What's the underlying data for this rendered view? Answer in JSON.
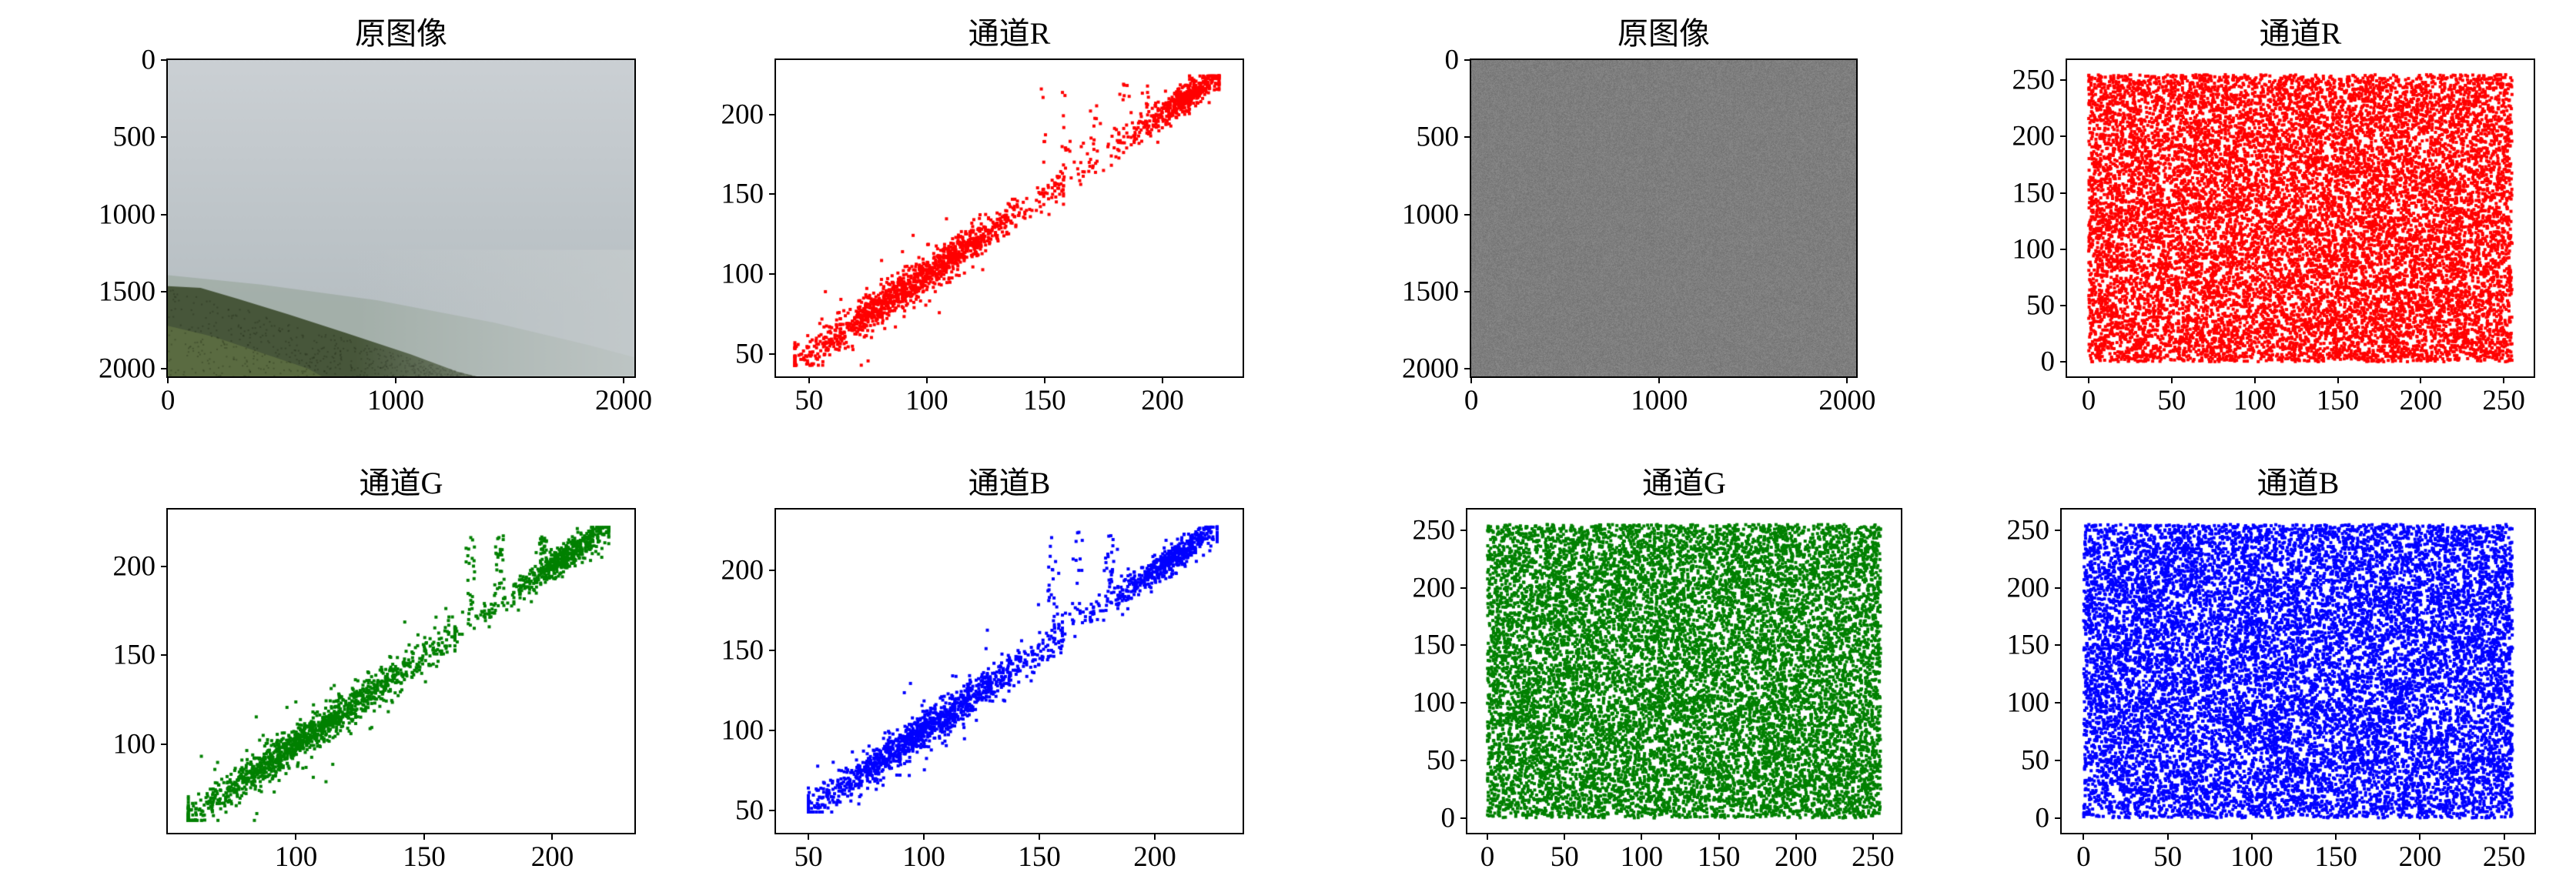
{
  "page": {
    "background": "#ffffff"
  },
  "chart_data": [
    {
      "type": "image",
      "title": "原图像",
      "image_kind": "landscape-photo",
      "description": "Hazy gray sky over dark green forested hillside; ridge descends from upper left toward lower right into mist",
      "x_ticks": [
        0,
        1000,
        2000
      ],
      "y_ticks": [
        0,
        500,
        1000,
        1500,
        2000
      ],
      "axis_extent": 2048,
      "seed": 7,
      "palette": {
        "sky_top": "#cbd0d4",
        "sky_bottom": "#b6bec2",
        "far_hill": "#93a395",
        "hill_dark": "#47563a",
        "foreground": "#5c6d41",
        "fog": "#c6cccd"
      }
    },
    {
      "type": "scatter",
      "title": "通道R",
      "color": "#ff0000",
      "marker_size": 4,
      "n_points": 1900,
      "seed": 101,
      "distribution": "adjacent-pixel-correlation",
      "xlim": [
        36,
        234
      ],
      "ylim": [
        36,
        234
      ],
      "x_ticks": [
        50,
        100,
        150,
        200
      ],
      "y_ticks": [
        50,
        100,
        150,
        200
      ],
      "diagonal": {
        "low": {
          "mean": 95,
          "sd": 28,
          "min": 44,
          "max": 158,
          "weight": 0.645
        },
        "high": {
          "mean": 209,
          "sd": 9,
          "min": 188,
          "max": 224,
          "weight": 0.25
        },
        "mid": {
          "min": 148,
          "max": 196,
          "weight": 0.05
        },
        "columns": [
          150,
          159,
          171,
          184,
          193
        ],
        "column_weight": 0.035,
        "y_top": 220,
        "noise_sd": 5.5,
        "data_min": 43,
        "data_max": 224
      }
    },
    {
      "type": "scatter",
      "title": "通道G",
      "color": "#008000",
      "marker_size": 4,
      "n_points": 2000,
      "seed": 102,
      "distribution": "adjacent-pixel-correlation",
      "xlim": [
        50,
        232
      ],
      "ylim": [
        50,
        232
      ],
      "x_ticks": [
        100,
        150,
        200
      ],
      "y_ticks": [
        100,
        150,
        200
      ],
      "diagonal": {
        "low": {
          "mean": 102,
          "sd": 27,
          "min": 58,
          "max": 162,
          "weight": 0.66
        },
        "high": {
          "mean": 206,
          "sd": 9,
          "min": 185,
          "max": 222,
          "weight": 0.24
        },
        "mid": {
          "min": 148,
          "max": 188,
          "weight": 0.05
        },
        "columns": [
          168,
          179,
          196
        ],
        "column_weight": 0.03,
        "y_top": 218,
        "noise_sd": 5,
        "data_min": 57,
        "data_max": 222
      }
    },
    {
      "type": "scatter",
      "title": "通道B",
      "color": "#0000ff",
      "marker_size": 4,
      "n_points": 1900,
      "seed": 103,
      "distribution": "adjacent-pixel-correlation",
      "xlim": [
        36,
        238
      ],
      "ylim": [
        36,
        238
      ],
      "x_ticks": [
        50,
        100,
        150,
        200
      ],
      "y_ticks": [
        50,
        100,
        150,
        200
      ],
      "diagonal": {
        "low": {
          "mean": 97,
          "sd": 28,
          "min": 50,
          "max": 160,
          "weight": 0.645
        },
        "high": {
          "mean": 207,
          "sd": 10,
          "min": 184,
          "max": 227,
          "weight": 0.25
        },
        "mid": {
          "min": 150,
          "max": 192,
          "weight": 0.05
        },
        "columns": [
          156,
          167,
          181
        ],
        "column_weight": 0.03,
        "y_top": 224,
        "noise_sd": 5.5,
        "data_min": 49,
        "data_max": 227
      }
    },
    {
      "type": "image",
      "title": "原图像",
      "image_kind": "gray-noise",
      "description": "Uniform mid-gray noise image (encrypted result)",
      "x_ticks": [
        0,
        1000,
        2000
      ],
      "y_ticks": [
        0,
        500,
        1000,
        1500,
        2000
      ],
      "axis_extent": 2048,
      "seed": 8,
      "noise": {
        "base": 126,
        "spread": 26
      }
    },
    {
      "type": "scatter",
      "title": "通道R",
      "color": "#ff0000",
      "marker_size": 4,
      "n_points": 14000,
      "seed": 201,
      "distribution": "uniform-random",
      "xlim": [
        -13,
        268
      ],
      "ylim": [
        -13,
        268
      ],
      "x_ticks": [
        0,
        50,
        100,
        150,
        200,
        250
      ],
      "y_ticks": [
        0,
        50,
        100,
        150,
        200,
        250
      ],
      "uniform": {
        "min": 0,
        "max": 255
      }
    },
    {
      "type": "scatter",
      "title": "通道G",
      "color": "#008000",
      "marker_size": 4,
      "n_points": 13000,
      "seed": 202,
      "distribution": "uniform-random",
      "xlim": [
        -13,
        268
      ],
      "ylim": [
        -13,
        268
      ],
      "x_ticks": [
        0,
        50,
        100,
        150,
        200,
        250
      ],
      "y_ticks": [
        0,
        50,
        100,
        150,
        200,
        250
      ],
      "uniform": {
        "min": 0,
        "max": 255
      }
    },
    {
      "type": "scatter",
      "title": "通道B",
      "color": "#0000ff",
      "marker_size": 4,
      "n_points": 14000,
      "seed": 203,
      "distribution": "uniform-random",
      "xlim": [
        -13,
        268
      ],
      "ylim": [
        -13,
        268
      ],
      "x_ticks": [
        0,
        50,
        100,
        150,
        200,
        250
      ],
      "y_ticks": [
        0,
        50,
        100,
        150,
        200,
        250
      ],
      "uniform": {
        "min": 0,
        "max": 255
      }
    }
  ]
}
